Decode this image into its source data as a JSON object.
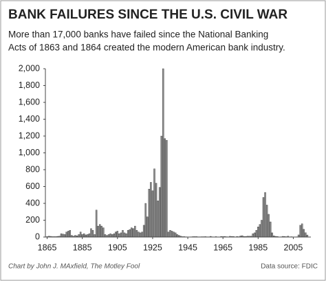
{
  "chart_data": {
    "type": "bar",
    "title": "BANK FAILURES SINCE THE U.S. CIVIL WAR",
    "subtitle": [
      "More than 17,000 banks have failed since the National Banking",
      "Acts of 1863 and 1864 created the modern American bank industry."
    ],
    "credit": "Chart by John J. MAxfield, The Motley Fool",
    "source": "Data source: FDIC",
    "color": "#8c8c8c",
    "x": [
      1865,
      1866,
      1867,
      1868,
      1869,
      1870,
      1871,
      1872,
      1873,
      1874,
      1875,
      1876,
      1877,
      1878,
      1879,
      1880,
      1881,
      1882,
      1883,
      1884,
      1885,
      1886,
      1887,
      1888,
      1889,
      1890,
      1891,
      1892,
      1893,
      1894,
      1895,
      1896,
      1897,
      1898,
      1899,
      1900,
      1901,
      1902,
      1903,
      1904,
      1905,
      1906,
      1907,
      1908,
      1909,
      1910,
      1911,
      1912,
      1913,
      1914,
      1915,
      1916,
      1917,
      1918,
      1919,
      1920,
      1921,
      1922,
      1923,
      1924,
      1925,
      1926,
      1927,
      1928,
      1929,
      1930,
      1931,
      1932,
      1933,
      1934,
      1935,
      1936,
      1937,
      1938,
      1939,
      1940,
      1941,
      1942,
      1943,
      1944,
      1945,
      1946,
      1947,
      1948,
      1949,
      1950,
      1951,
      1952,
      1953,
      1954,
      1955,
      1956,
      1957,
      1958,
      1959,
      1960,
      1961,
      1962,
      1963,
      1964,
      1965,
      1966,
      1967,
      1968,
      1969,
      1970,
      1971,
      1972,
      1973,
      1974,
      1975,
      1976,
      1977,
      1978,
      1979,
      1980,
      1981,
      1982,
      1983,
      1984,
      1985,
      1986,
      1987,
      1988,
      1989,
      1990,
      1991,
      1992,
      1993,
      1994,
      1995,
      1996,
      1997,
      1998,
      1999,
      2000,
      2001,
      2002,
      2003,
      2004,
      2005,
      2006,
      2007,
      2008,
      2009,
      2010,
      2011,
      2012,
      2013
    ],
    "values": [
      5,
      10,
      8,
      5,
      5,
      5,
      8,
      10,
      40,
      35,
      30,
      60,
      70,
      80,
      20,
      10,
      20,
      15,
      30,
      60,
      30,
      40,
      25,
      30,
      40,
      100,
      80,
      30,
      320,
      130,
      150,
      130,
      110,
      30,
      20,
      30,
      40,
      30,
      40,
      60,
      70,
      40,
      50,
      80,
      50,
      40,
      80,
      90,
      110,
      100,
      130,
      80,
      60,
      50,
      60,
      140,
      400,
      240,
      570,
      650,
      550,
      810,
      640,
      430,
      590,
      1200,
      2000,
      1170,
      1150,
      60,
      80,
      70,
      60,
      50,
      30,
      20,
      10,
      5,
      5,
      3,
      1,
      2,
      3,
      5,
      5,
      5,
      3,
      3,
      4,
      4,
      5,
      3,
      3,
      8,
      3,
      2,
      5,
      1,
      2,
      7,
      5,
      7,
      4,
      3,
      9,
      7,
      6,
      1,
      6,
      4,
      13,
      16,
      6,
      7,
      10,
      10,
      10,
      40,
      50,
      80,
      120,
      150,
      200,
      470,
      530,
      380,
      270,
      180,
      50,
      15,
      8,
      6,
      1,
      3,
      8,
      7,
      4,
      11,
      3,
      4,
      0,
      0,
      3,
      25,
      140,
      157,
      92,
      51,
      24
    ],
    "xlim": [
      1864,
      2015
    ],
    "xticks": [
      1865,
      1885,
      1905,
      1925,
      1945,
      1965,
      1985,
      2005
    ],
    "ylim": [
      0,
      2000
    ],
    "yticks": [
      0,
      200,
      400,
      600,
      800,
      {
        "value": 1000,
        "label": "1,000"
      },
      {
        "value": 1200,
        "label": "1,200"
      },
      {
        "value": 1400,
        "label": "1,400"
      },
      {
        "value": 1600,
        "label": "1,600"
      },
      {
        "value": 1800,
        "label": "1,800"
      },
      {
        "value": 2000,
        "label": "2,000"
      }
    ],
    "grid": false
  }
}
